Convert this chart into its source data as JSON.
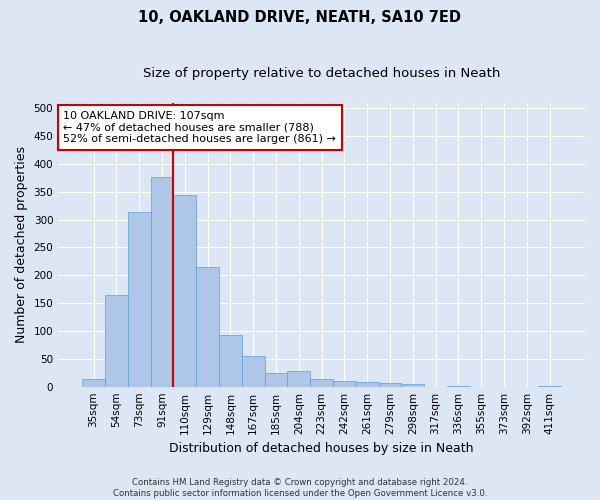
{
  "title": "10, OAKLAND DRIVE, NEATH, SA10 7ED",
  "subtitle": "Size of property relative to detached houses in Neath",
  "xlabel": "Distribution of detached houses by size in Neath",
  "ylabel": "Number of detached properties",
  "footnote": "Contains HM Land Registry data © Crown copyright and database right 2024.\nContains public sector information licensed under the Open Government Licence v3.0.",
  "categories": [
    "35sqm",
    "54sqm",
    "73sqm",
    "91sqm",
    "110sqm",
    "129sqm",
    "148sqm",
    "167sqm",
    "185sqm",
    "204sqm",
    "223sqm",
    "242sqm",
    "261sqm",
    "279sqm",
    "298sqm",
    "317sqm",
    "336sqm",
    "355sqm",
    "373sqm",
    "392sqm",
    "411sqm"
  ],
  "values": [
    13,
    165,
    313,
    376,
    344,
    215,
    93,
    55,
    24,
    28,
    13,
    10,
    8,
    6,
    4,
    0,
    2,
    0,
    0,
    0,
    2
  ],
  "bar_color": "#aec6e8",
  "bar_edge_color": "#5a9fd4",
  "vline_x_index": 4,
  "vline_color": "#cc0000",
  "annotation_text": "10 OAKLAND DRIVE: 107sqm\n← 47% of detached houses are smaller (788)\n52% of semi-detached houses are larger (861) →",
  "annotation_box_color": "#ffffff",
  "annotation_box_edge": "#cc0000",
  "ylim": [
    0,
    510
  ],
  "yticks": [
    0,
    50,
    100,
    150,
    200,
    250,
    300,
    350,
    400,
    450,
    500
  ],
  "bg_color": "#dce6f5",
  "plot_bg": "#dce6f5",
  "grid_color": "#ffffff",
  "title_fontsize": 10.5,
  "subtitle_fontsize": 9.5,
  "tick_fontsize": 7.5,
  "label_fontsize": 9
}
